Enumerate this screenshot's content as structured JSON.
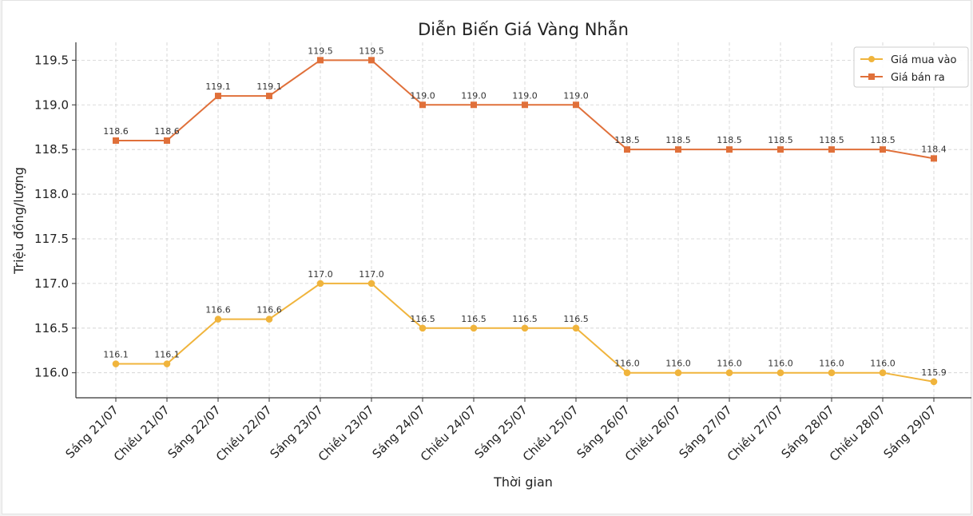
{
  "chart_data": {
    "type": "line",
    "title": "Diễn Biến Giá Vàng Nhẫn",
    "xlabel": "Thời gian",
    "ylabel": "Triệu đồng/lượng",
    "categories": [
      "Sáng 21/07",
      "Chiều 21/07",
      "Sáng 22/07",
      "Chiều 22/07",
      "Sáng 23/07",
      "Chiều 23/07",
      "Sáng 24/07",
      "Chiều 24/07",
      "Sáng 25/07",
      "Chiều 25/07",
      "Sáng 26/07",
      "Chiều 26/07",
      "Sáng 27/07",
      "Chiều 27/07",
      "Sáng 28/07",
      "Chiều 28/07",
      "Sáng 29/07"
    ],
    "ylim": [
      115.72,
      119.7
    ],
    "yticks": [
      116.0,
      116.5,
      117.0,
      117.5,
      118.0,
      118.5,
      119.0,
      119.5
    ],
    "ytick_labels": [
      "116.0",
      "116.5",
      "117.0",
      "117.5",
      "118.0",
      "118.5",
      "119.0",
      "119.5"
    ],
    "grid": true,
    "legend_position": "top-right",
    "series": [
      {
        "name": "Giá mua vào",
        "color": "#f0b43c",
        "marker": "circle",
        "values": [
          116.1,
          116.1,
          116.6,
          116.6,
          117.0,
          117.0,
          116.5,
          116.5,
          116.5,
          116.5,
          116.0,
          116.0,
          116.0,
          116.0,
          116.0,
          116.0,
          115.9
        ],
        "labels": [
          "116.1",
          "116.1",
          "116.6",
          "116.6",
          "117.0",
          "117.0",
          "116.5",
          "116.5",
          "116.5",
          "116.5",
          "116.0",
          "116.0",
          "116.0",
          "116.0",
          "116.0",
          "116.0",
          "115.9"
        ]
      },
      {
        "name": "Giá bán ra",
        "color": "#e0703a",
        "marker": "square",
        "values": [
          118.6,
          118.6,
          119.1,
          119.1,
          119.5,
          119.5,
          119.0,
          119.0,
          119.0,
          119.0,
          118.5,
          118.5,
          118.5,
          118.5,
          118.5,
          118.5,
          118.4
        ],
        "labels": [
          "118.6",
          "118.6",
          "119.1",
          "119.1",
          "119.5",
          "119.5",
          "119.0",
          "119.0",
          "119.0",
          "119.0",
          "118.5",
          "118.5",
          "118.5",
          "118.5",
          "118.5",
          "118.5",
          "118.4"
        ]
      }
    ]
  }
}
